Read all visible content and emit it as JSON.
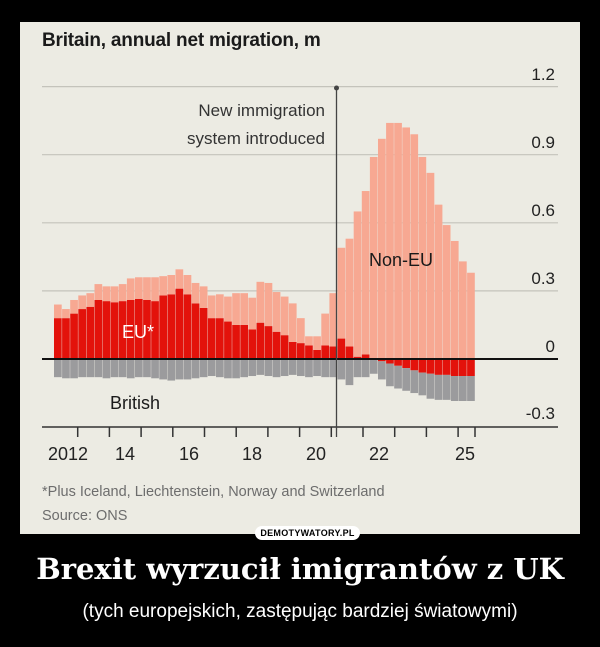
{
  "chart_data": {
    "type": "bar",
    "stacked": true,
    "title": "Britain, annual net migration, m",
    "ylim": [
      -0.3,
      1.2
    ],
    "y_ticks": [
      "1.2",
      "0.9",
      "0.6",
      "0.3",
      "0",
      "-0.3"
    ],
    "x_tick_labels": [
      "2012",
      "14",
      "16",
      "18",
      "20",
      "22",
      "25"
    ],
    "grid": true,
    "x": [
      "2012Q2",
      "2012Q3",
      "2012Q4",
      "2013Q1",
      "2013Q2",
      "2013Q3",
      "2013Q4",
      "2014Q1",
      "2014Q2",
      "2014Q3",
      "2014Q4",
      "2015Q1",
      "2015Q2",
      "2015Q3",
      "2015Q4",
      "2016Q1",
      "2016Q2",
      "2016Q3",
      "2016Q4",
      "2017Q1",
      "2017Q2",
      "2017Q3",
      "2017Q4",
      "2018Q1",
      "2018Q2",
      "2018Q3",
      "2018Q4",
      "2019Q1",
      "2019Q2",
      "2019Q3",
      "2019Q4",
      "2020Q1",
      "2020Q2",
      "2020Q3",
      "2020Q4",
      "2021Q1",
      "2021Q2",
      "2021Q3",
      "2021Q4",
      "2022Q1",
      "2022Q2",
      "2022Q3",
      "2022Q4",
      "2023Q1",
      "2023Q2",
      "2023Q3",
      "2023Q4",
      "2024Q1",
      "2024Q2",
      "2024Q3",
      "2024Q4",
      "2025Q1"
    ],
    "series": [
      {
        "name": "EU*",
        "color": "#e3120b",
        "values": [
          0.18,
          0.18,
          0.2,
          0.22,
          0.23,
          0.26,
          0.255,
          0.25,
          0.255,
          0.26,
          0.265,
          0.26,
          0.255,
          0.28,
          0.285,
          0.31,
          0.285,
          0.245,
          0.225,
          0.18,
          0.18,
          0.165,
          0.15,
          0.15,
          0.13,
          0.16,
          0.145,
          0.12,
          0.105,
          0.075,
          0.07,
          0.06,
          0.04,
          0.06,
          0.055,
          0.09,
          0.055,
          0.01,
          0.02,
          0,
          -0.01,
          -0.02,
          -0.03,
          -0.04,
          -0.05,
          -0.06,
          -0.065,
          -0.07,
          -0.07,
          -0.075,
          -0.075,
          -0.075
        ]
      },
      {
        "name": "Non-EU",
        "color": "#f7a892",
        "values": [
          0.06,
          0.04,
          0.06,
          0.06,
          0.06,
          0.07,
          0.065,
          0.07,
          0.075,
          0.095,
          0.095,
          0.1,
          0.105,
          0.085,
          0.085,
          0.085,
          0.085,
          0.09,
          0.095,
          0.1,
          0.105,
          0.11,
          0.14,
          0.14,
          0.14,
          0.18,
          0.19,
          0.175,
          0.17,
          0.17,
          0.11,
          0.04,
          0.06,
          0.14,
          0.235,
          0.4,
          0.475,
          0.64,
          0.72,
          0.89,
          0.97,
          1.04,
          1.04,
          1.02,
          0.99,
          0.89,
          0.82,
          0.68,
          0.59,
          0.52,
          0.43,
          0.38
        ]
      },
      {
        "name": "British",
        "color": "#9b9b9d",
        "values": [
          -0.08,
          -0.085,
          -0.085,
          -0.08,
          -0.08,
          -0.08,
          -0.085,
          -0.08,
          -0.08,
          -0.085,
          -0.08,
          -0.08,
          -0.085,
          -0.09,
          -0.095,
          -0.09,
          -0.09,
          -0.085,
          -0.08,
          -0.075,
          -0.08,
          -0.085,
          -0.085,
          -0.08,
          -0.075,
          -0.07,
          -0.075,
          -0.08,
          -0.075,
          -0.07,
          -0.075,
          -0.08,
          -0.075,
          -0.08,
          -0.08,
          -0.09,
          -0.115,
          -0.08,
          -0.08,
          -0.065,
          -0.08,
          -0.1,
          -0.1,
          -0.1,
          -0.1,
          -0.1,
          -0.11,
          -0.11,
          -0.11,
          -0.11,
          -0.11,
          -0.11
        ]
      }
    ],
    "annotations": {
      "event_line_x": "2021Q1",
      "event_label_line1": "New immigration",
      "event_label_line2": "system introduced"
    },
    "footnote": "*Plus Iceland, Liechtenstein, Norway and Switzerland",
    "source": "Source: ONS"
  },
  "watermark": "DEMOTYWATORY.PL",
  "caption": {
    "title": "Brexit wyrzucił imigrantów z UK",
    "subtitle": "(tych europejskich, zastępując bardziej światowymi)"
  }
}
